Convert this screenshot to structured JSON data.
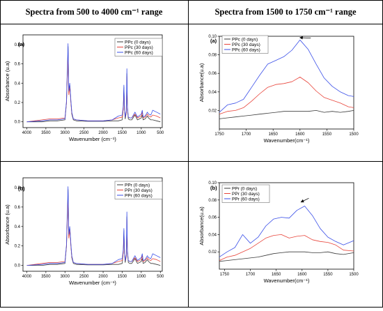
{
  "headers": {
    "left": "Spectra from 500 to 4000 cm⁻¹ range",
    "right": "Spectra from 1500 to 1750 cm⁻¹ range"
  },
  "colors": {
    "black": "#3a3a3a",
    "red": "#e8443a",
    "blue": "#3a4fe8",
    "table_line": "#000000"
  },
  "chart_data": [
    {
      "type": "line",
      "id": "tl",
      "panel_label": "(a)",
      "xlabel": "Wavenumber (cm⁻¹)",
      "ylabel": "Absorbance (u.a)",
      "xlim": [
        4100,
        450
      ],
      "ylim": [
        -0.06,
        0.9
      ],
      "xticks": [
        4000,
        3500,
        3000,
        2500,
        2000,
        1500,
        1000,
        500
      ],
      "yticks": [
        0.0,
        0.2,
        0.4,
        0.6,
        0.8
      ],
      "ytick_labels": [
        "0.0",
        "0.2",
        "0.4",
        "0.6",
        "0.8"
      ],
      "legend_position": "top-right",
      "series": [
        {
          "name": "PPc (0 days)",
          "color": "#3a3a3a",
          "x": [
            4000,
            3600,
            3400,
            3200,
            3000,
            2960,
            2950,
            2935,
            2920,
            2900,
            2875,
            2860,
            2845,
            2820,
            2780,
            2700,
            2400,
            2000,
            1760,
            1600,
            1500,
            1470,
            1455,
            1440,
            1420,
            1390,
            1377,
            1365,
            1340,
            1300,
            1250,
            1165,
            1100,
            1000,
            973,
            950,
            900,
            840,
            810,
            750,
            700,
            600,
            500
          ],
          "y": [
            0.0,
            0.0,
            0.01,
            0.01,
            0.02,
            0.2,
            0.35,
            0.5,
            0.78,
            0.3,
            0.38,
            0.32,
            0.2,
            0.08,
            0.02,
            0.01,
            0.005,
            0.005,
            0.01,
            0.01,
            0.02,
            0.15,
            0.36,
            0.12,
            0.03,
            0.1,
            0.5,
            0.15,
            0.03,
            0.02,
            0.02,
            0.07,
            0.02,
            0.04,
            0.07,
            0.02,
            0.03,
            0.06,
            0.04,
            0.02,
            0.02,
            0.01,
            0.0
          ]
        },
        {
          "name": "PPc (30 days)",
          "color": "#e8443a",
          "x": [
            4000,
            3600,
            3400,
            3200,
            3000,
            2960,
            2950,
            2935,
            2920,
            2900,
            2875,
            2860,
            2845,
            2820,
            2780,
            2700,
            2400,
            2000,
            1760,
            1600,
            1500,
            1470,
            1455,
            1440,
            1420,
            1390,
            1377,
            1365,
            1340,
            1300,
            1250,
            1165,
            1100,
            1000,
            973,
            950,
            900,
            840,
            810,
            750,
            700,
            600,
            500
          ],
          "y": [
            0.0,
            0.02,
            0.03,
            0.03,
            0.04,
            0.2,
            0.33,
            0.48,
            0.72,
            0.28,
            0.36,
            0.3,
            0.2,
            0.09,
            0.03,
            0.02,
            0.01,
            0.01,
            0.02,
            0.04,
            0.05,
            0.14,
            0.33,
            0.12,
            0.05,
            0.1,
            0.47,
            0.15,
            0.05,
            0.04,
            0.04,
            0.08,
            0.04,
            0.06,
            0.1,
            0.04,
            0.05,
            0.08,
            0.06,
            0.05,
            0.07,
            0.06,
            0.04
          ]
        },
        {
          "name": "PPc (60 days)",
          "color": "#3a4fe8",
          "x": [
            4000,
            3600,
            3400,
            3200,
            3000,
            2960,
            2950,
            2935,
            2920,
            2900,
            2875,
            2860,
            2845,
            2820,
            2780,
            2700,
            2400,
            2000,
            1760,
            1600,
            1500,
            1470,
            1455,
            1440,
            1420,
            1390,
            1377,
            1365,
            1340,
            1300,
            1250,
            1165,
            1100,
            1000,
            973,
            950,
            900,
            840,
            810,
            750,
            700,
            600,
            500
          ],
          "y": [
            0.0,
            0.01,
            0.02,
            0.02,
            0.03,
            0.22,
            0.38,
            0.55,
            0.81,
            0.32,
            0.4,
            0.33,
            0.22,
            0.1,
            0.03,
            0.02,
            0.01,
            0.01,
            0.02,
            0.06,
            0.07,
            0.17,
            0.38,
            0.14,
            0.05,
            0.12,
            0.55,
            0.17,
            0.05,
            0.04,
            0.04,
            0.1,
            0.05,
            0.08,
            0.12,
            0.05,
            0.06,
            0.1,
            0.08,
            0.07,
            0.12,
            0.1,
            0.08
          ]
        }
      ]
    },
    {
      "type": "line",
      "id": "tr",
      "panel_label": "(a)",
      "xlabel": "Wavenumber(cm⁻¹)",
      "ylabel": "Absorbance(u.a)",
      "xlim": [
        1750,
        1500
      ],
      "ylim": [
        0.0,
        0.1
      ],
      "xticks": [
        1750,
        1700,
        1650,
        1600,
        1550,
        1500
      ],
      "yticks": [
        0.02,
        0.04,
        0.06,
        0.08,
        0.1
      ],
      "ytick_labels": [
        "0.02",
        "0.04",
        "0.06",
        "0.08",
        "0.10"
      ],
      "legend_position": "top-left",
      "series": [
        {
          "name": "PPc (0 days)",
          "color": "#3a3a3a",
          "x": [
            1750,
            1735,
            1720,
            1705,
            1690,
            1675,
            1660,
            1645,
            1630,
            1615,
            1600,
            1585,
            1570,
            1555,
            1540,
            1525,
            1510,
            1500
          ],
          "y": [
            0.011,
            0.012,
            0.013,
            0.014,
            0.015,
            0.016,
            0.017,
            0.018,
            0.019,
            0.019,
            0.019,
            0.019,
            0.02,
            0.018,
            0.019,
            0.018,
            0.019,
            0.02
          ]
        },
        {
          "name": "PPc (30 days)",
          "color": "#e8443a",
          "x": [
            1750,
            1735,
            1720,
            1705,
            1690,
            1675,
            1660,
            1645,
            1630,
            1615,
            1600,
            1585,
            1570,
            1555,
            1540,
            1525,
            1510,
            1500
          ],
          "y": [
            0.016,
            0.019,
            0.02,
            0.023,
            0.03,
            0.038,
            0.045,
            0.048,
            0.049,
            0.051,
            0.056,
            0.05,
            0.041,
            0.034,
            0.031,
            0.028,
            0.024,
            0.023
          ]
        },
        {
          "name": "PPc (60 days)",
          "color": "#3a4fe8",
          "x": [
            1750,
            1735,
            1720,
            1705,
            1690,
            1675,
            1660,
            1645,
            1630,
            1615,
            1600,
            1585,
            1570,
            1555,
            1540,
            1525,
            1510,
            1500
          ],
          "y": [
            0.018,
            0.026,
            0.028,
            0.032,
            0.045,
            0.058,
            0.07,
            0.074,
            0.078,
            0.085,
            0.096,
            0.086,
            0.07,
            0.055,
            0.046,
            0.04,
            0.036,
            0.035
          ]
        }
      ]
    },
    {
      "type": "line",
      "id": "bl",
      "panel_label": "(b)",
      "xlabel": "Wavenumber (cm⁻¹)",
      "ylabel": "Absorbance (u.a)",
      "xlim": [
        4100,
        450
      ],
      "ylim": [
        -0.06,
        0.9
      ],
      "xticks": [
        4000,
        3500,
        3000,
        2500,
        2000,
        1500,
        1000,
        500
      ],
      "yticks": [
        0.0,
        0.2,
        0.4,
        0.6,
        0.8
      ],
      "ytick_labels": [
        "0.0",
        "0.2",
        "0.4",
        "0.6",
        "0.8"
      ],
      "legend_position": "top-right",
      "series": [
        {
          "name": "PPr (0 days)",
          "color": "#3a3a3a",
          "x": [
            4000,
            3600,
            3400,
            3200,
            3000,
            2960,
            2950,
            2935,
            2920,
            2900,
            2875,
            2860,
            2845,
            2820,
            2780,
            2700,
            2400,
            2000,
            1760,
            1600,
            1500,
            1470,
            1455,
            1440,
            1420,
            1390,
            1377,
            1365,
            1340,
            1300,
            1250,
            1165,
            1100,
            1000,
            973,
            950,
            900,
            840,
            810,
            750,
            700,
            600,
            500
          ],
          "y": [
            0.0,
            0.0,
            0.01,
            0.01,
            0.02,
            0.2,
            0.35,
            0.5,
            0.78,
            0.3,
            0.38,
            0.32,
            0.2,
            0.08,
            0.02,
            0.01,
            0.005,
            0.005,
            0.01,
            0.01,
            0.02,
            0.15,
            0.36,
            0.12,
            0.03,
            0.1,
            0.5,
            0.15,
            0.03,
            0.02,
            0.02,
            0.07,
            0.02,
            0.04,
            0.07,
            0.02,
            0.03,
            0.06,
            0.04,
            0.02,
            0.02,
            0.01,
            0.0
          ]
        },
        {
          "name": "PPr (30 days)",
          "color": "#e8443a",
          "x": [
            4000,
            3600,
            3400,
            3200,
            3000,
            2960,
            2950,
            2935,
            2920,
            2900,
            2875,
            2860,
            2845,
            2820,
            2780,
            2700,
            2400,
            2000,
            1760,
            1600,
            1500,
            1470,
            1455,
            1440,
            1420,
            1390,
            1377,
            1365,
            1340,
            1300,
            1250,
            1165,
            1100,
            1000,
            973,
            950,
            900,
            840,
            810,
            750,
            700,
            600,
            500
          ],
          "y": [
            0.0,
            0.02,
            0.03,
            0.03,
            0.04,
            0.2,
            0.33,
            0.48,
            0.72,
            0.28,
            0.36,
            0.3,
            0.2,
            0.09,
            0.03,
            0.02,
            0.01,
            0.01,
            0.02,
            0.04,
            0.05,
            0.14,
            0.33,
            0.12,
            0.05,
            0.1,
            0.47,
            0.15,
            0.05,
            0.04,
            0.04,
            0.08,
            0.04,
            0.06,
            0.1,
            0.04,
            0.05,
            0.08,
            0.06,
            0.05,
            0.07,
            0.06,
            0.04
          ]
        },
        {
          "name": "PPr (60 days)",
          "color": "#3a4fe8",
          "x": [
            4000,
            3600,
            3400,
            3200,
            3000,
            2960,
            2950,
            2935,
            2920,
            2900,
            2875,
            2860,
            2845,
            2820,
            2780,
            2700,
            2400,
            2000,
            1760,
            1600,
            1500,
            1470,
            1455,
            1440,
            1420,
            1390,
            1377,
            1365,
            1340,
            1300,
            1250,
            1165,
            1100,
            1000,
            973,
            950,
            900,
            840,
            810,
            750,
            700,
            600,
            500
          ],
          "y": [
            0.0,
            0.01,
            0.02,
            0.02,
            0.03,
            0.22,
            0.38,
            0.55,
            0.81,
            0.32,
            0.4,
            0.33,
            0.22,
            0.1,
            0.03,
            0.02,
            0.01,
            0.01,
            0.02,
            0.06,
            0.07,
            0.17,
            0.38,
            0.14,
            0.05,
            0.12,
            0.55,
            0.17,
            0.05,
            0.04,
            0.04,
            0.1,
            0.05,
            0.08,
            0.12,
            0.05,
            0.06,
            0.1,
            0.08,
            0.07,
            0.12,
            0.1,
            0.08
          ]
        }
      ]
    },
    {
      "type": "line",
      "id": "br",
      "panel_label": "(b)",
      "xlabel": "Wavenumber(cm⁻¹)",
      "ylabel": "Absorbance(u.a)",
      "xlim": [
        1760,
        1500
      ],
      "ylim": [
        0.0,
        0.1
      ],
      "xticks": [
        1750,
        1700,
        1650,
        1600,
        1550,
        1500
      ],
      "yticks": [
        0.02,
        0.04,
        0.06,
        0.08,
        0.1
      ],
      "ytick_labels": [
        "0.02",
        "0.04",
        "0.06",
        "0.08",
        "0.10"
      ],
      "legend_position": "top-left",
      "series": [
        {
          "name": "PPr (0 days)",
          "color": "#3a3a3a",
          "x": [
            1760,
            1745,
            1730,
            1715,
            1700,
            1685,
            1670,
            1655,
            1640,
            1625,
            1610,
            1595,
            1580,
            1565,
            1550,
            1535,
            1520,
            1500
          ],
          "y": [
            0.009,
            0.01,
            0.011,
            0.012,
            0.013,
            0.014,
            0.016,
            0.018,
            0.019,
            0.02,
            0.02,
            0.02,
            0.019,
            0.019,
            0.02,
            0.018,
            0.017,
            0.019
          ]
        },
        {
          "name": "PPr (30 days)",
          "color": "#e8443a",
          "x": [
            1760,
            1745,
            1730,
            1715,
            1700,
            1685,
            1670,
            1655,
            1640,
            1625,
            1610,
            1595,
            1580,
            1565,
            1550,
            1535,
            1520,
            1500
          ],
          "y": [
            0.01,
            0.014,
            0.016,
            0.02,
            0.024,
            0.03,
            0.036,
            0.039,
            0.04,
            0.036,
            0.038,
            0.039,
            0.034,
            0.032,
            0.031,
            0.028,
            0.022,
            0.021
          ]
        },
        {
          "name": "PPr (60 days)",
          "color": "#3a4fe8",
          "x": [
            1760,
            1745,
            1730,
            1715,
            1700,
            1685,
            1670,
            1655,
            1640,
            1625,
            1610,
            1595,
            1580,
            1565,
            1550,
            1535,
            1520,
            1500
          ],
          "y": [
            0.014,
            0.02,
            0.025,
            0.04,
            0.03,
            0.037,
            0.05,
            0.058,
            0.06,
            0.059,
            0.068,
            0.073,
            0.062,
            0.047,
            0.037,
            0.032,
            0.028,
            0.033
          ]
        }
      ]
    }
  ]
}
